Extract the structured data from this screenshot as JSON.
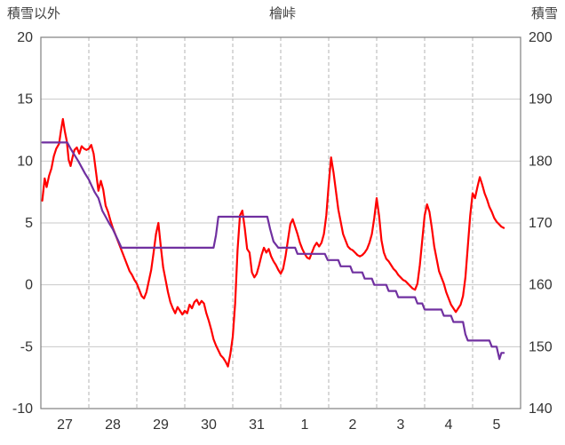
{
  "header": {
    "left_axis_title": "積雪以外",
    "title": "檜峠",
    "right_axis_title": "積雪"
  },
  "chart_data": {
    "type": "line",
    "title": "檜峠",
    "left_axis": {
      "label": "積雪以外",
      "min": -10,
      "max": 20,
      "ticks": [
        20,
        15,
        10,
        5,
        0,
        -5,
        -10
      ]
    },
    "right_axis": {
      "label": "積雪",
      "min": 140,
      "max": 200,
      "ticks": [
        200,
        190,
        180,
        170,
        160,
        150,
        140
      ]
    },
    "x_axis": {
      "labels": [
        "27",
        "28",
        "29",
        "30",
        "31",
        "1",
        "2",
        "3",
        "4",
        "5"
      ],
      "min": 0,
      "max": 10
    },
    "grid": {
      "horizontal": "solid",
      "vertical": "dashed"
    },
    "style": {
      "h_grid": "#c9c9c9",
      "v_grid": "#b3b3b3",
      "border": "#808080",
      "tick_color": "#333333"
    },
    "series": [
      {
        "key": "non-snow",
        "name": "積雪以外",
        "axis": "left",
        "color": "#ff0000",
        "points": [
          [
            0.03,
            6.8
          ],
          [
            0.08,
            8.6
          ],
          [
            0.12,
            7.9
          ],
          [
            0.17,
            8.8
          ],
          [
            0.22,
            9.4
          ],
          [
            0.27,
            10.4
          ],
          [
            0.32,
            11.0
          ],
          [
            0.38,
            11.4
          ],
          [
            0.42,
            12.5
          ],
          [
            0.46,
            13.4
          ],
          [
            0.5,
            12.4
          ],
          [
            0.54,
            11.6
          ],
          [
            0.58,
            10.1
          ],
          [
            0.62,
            9.6
          ],
          [
            0.66,
            10.3
          ],
          [
            0.7,
            10.9
          ],
          [
            0.75,
            11.1
          ],
          [
            0.8,
            10.6
          ],
          [
            0.85,
            11.2
          ],
          [
            0.9,
            11.0
          ],
          [
            0.95,
            10.9
          ],
          [
            1.0,
            11.0
          ],
          [
            1.05,
            11.3
          ],
          [
            1.1,
            10.6
          ],
          [
            1.15,
            9.1
          ],
          [
            1.2,
            7.6
          ],
          [
            1.25,
            8.4
          ],
          [
            1.3,
            7.7
          ],
          [
            1.35,
            6.4
          ],
          [
            1.4,
            5.9
          ],
          [
            1.45,
            5.2
          ],
          [
            1.5,
            4.6
          ],
          [
            1.55,
            4.1
          ],
          [
            1.6,
            3.6
          ],
          [
            1.65,
            3.1
          ],
          [
            1.7,
            2.6
          ],
          [
            1.75,
            2.1
          ],
          [
            1.8,
            1.6
          ],
          [
            1.85,
            1.1
          ],
          [
            1.9,
            0.8
          ],
          [
            1.95,
            0.4
          ],
          [
            2.0,
            0.1
          ],
          [
            2.05,
            -0.4
          ],
          [
            2.1,
            -0.9
          ],
          [
            2.15,
            -1.1
          ],
          [
            2.2,
            -0.6
          ],
          [
            2.25,
            0.3
          ],
          [
            2.3,
            1.2
          ],
          [
            2.35,
            2.6
          ],
          [
            2.4,
            4.1
          ],
          [
            2.45,
            5.0
          ],
          [
            2.5,
            3.1
          ],
          [
            2.55,
            1.4
          ],
          [
            2.6,
            0.4
          ],
          [
            2.65,
            -0.6
          ],
          [
            2.7,
            -1.4
          ],
          [
            2.75,
            -1.9
          ],
          [
            2.8,
            -2.3
          ],
          [
            2.85,
            -1.8
          ],
          [
            2.9,
            -2.1
          ],
          [
            2.95,
            -2.4
          ],
          [
            3.0,
            -2.1
          ],
          [
            3.05,
            -2.3
          ],
          [
            3.1,
            -1.6
          ],
          [
            3.15,
            -1.9
          ],
          [
            3.2,
            -1.4
          ],
          [
            3.25,
            -1.2
          ],
          [
            3.3,
            -1.6
          ],
          [
            3.35,
            -1.3
          ],
          [
            3.4,
            -1.5
          ],
          [
            3.45,
            -2.3
          ],
          [
            3.5,
            -2.9
          ],
          [
            3.55,
            -3.6
          ],
          [
            3.6,
            -4.4
          ],
          [
            3.65,
            -4.9
          ],
          [
            3.7,
            -5.3
          ],
          [
            3.75,
            -5.7
          ],
          [
            3.8,
            -5.9
          ],
          [
            3.85,
            -6.2
          ],
          [
            3.9,
            -6.6
          ],
          [
            3.95,
            -5.6
          ],
          [
            4.0,
            -4.2
          ],
          [
            4.05,
            -1.5
          ],
          [
            4.1,
            2.8
          ],
          [
            4.15,
            5.6
          ],
          [
            4.2,
            6.0
          ],
          [
            4.25,
            4.6
          ],
          [
            4.3,
            2.9
          ],
          [
            4.35,
            2.6
          ],
          [
            4.4,
            1.0
          ],
          [
            4.45,
            0.6
          ],
          [
            4.5,
            0.9
          ],
          [
            4.55,
            1.6
          ],
          [
            4.6,
            2.4
          ],
          [
            4.65,
            3.0
          ],
          [
            4.7,
            2.6
          ],
          [
            4.75,
            2.9
          ],
          [
            4.8,
            2.3
          ],
          [
            4.85,
            1.9
          ],
          [
            4.9,
            1.6
          ],
          [
            4.95,
            1.2
          ],
          [
            5.0,
            0.9
          ],
          [
            5.05,
            1.3
          ],
          [
            5.1,
            2.3
          ],
          [
            5.15,
            3.6
          ],
          [
            5.2,
            4.9
          ],
          [
            5.25,
            5.3
          ],
          [
            5.3,
            4.7
          ],
          [
            5.35,
            4.1
          ],
          [
            5.4,
            3.4
          ],
          [
            5.45,
            2.9
          ],
          [
            5.5,
            2.5
          ],
          [
            5.55,
            2.2
          ],
          [
            5.6,
            2.1
          ],
          [
            5.65,
            2.6
          ],
          [
            5.7,
            3.1
          ],
          [
            5.75,
            3.4
          ],
          [
            5.8,
            3.1
          ],
          [
            5.85,
            3.4
          ],
          [
            5.9,
            4.1
          ],
          [
            5.95,
            5.6
          ],
          [
            6.0,
            8.1
          ],
          [
            6.05,
            10.3
          ],
          [
            6.1,
            9.1
          ],
          [
            6.15,
            7.6
          ],
          [
            6.2,
            6.1
          ],
          [
            6.25,
            5.1
          ],
          [
            6.3,
            4.1
          ],
          [
            6.35,
            3.6
          ],
          [
            6.4,
            3.1
          ],
          [
            6.45,
            2.9
          ],
          [
            6.5,
            2.8
          ],
          [
            6.55,
            2.6
          ],
          [
            6.6,
            2.4
          ],
          [
            6.65,
            2.3
          ],
          [
            6.7,
            2.4
          ],
          [
            6.75,
            2.6
          ],
          [
            6.8,
            2.9
          ],
          [
            6.85,
            3.4
          ],
          [
            6.9,
            4.1
          ],
          [
            6.95,
            5.4
          ],
          [
            7.0,
            7.0
          ],
          [
            7.05,
            5.6
          ],
          [
            7.1,
            3.6
          ],
          [
            7.15,
            2.6
          ],
          [
            7.2,
            2.1
          ],
          [
            7.25,
            1.9
          ],
          [
            7.3,
            1.6
          ],
          [
            7.35,
            1.3
          ],
          [
            7.4,
            1.1
          ],
          [
            7.45,
            0.8
          ],
          [
            7.5,
            0.6
          ],
          [
            7.55,
            0.4
          ],
          [
            7.6,
            0.3
          ],
          [
            7.65,
            0.1
          ],
          [
            7.7,
            -0.1
          ],
          [
            7.75,
            -0.3
          ],
          [
            7.8,
            -0.4
          ],
          [
            7.85,
            0.1
          ],
          [
            7.9,
            1.6
          ],
          [
            7.95,
            3.6
          ],
          [
            8.0,
            5.6
          ],
          [
            8.05,
            6.5
          ],
          [
            8.1,
            5.9
          ],
          [
            8.15,
            4.6
          ],
          [
            8.2,
            3.1
          ],
          [
            8.25,
            2.1
          ],
          [
            8.3,
            1.1
          ],
          [
            8.35,
            0.6
          ],
          [
            8.4,
            0.1
          ],
          [
            8.45,
            -0.6
          ],
          [
            8.5,
            -1.1
          ],
          [
            8.55,
            -1.6
          ],
          [
            8.6,
            -1.9
          ],
          [
            8.65,
            -2.2
          ],
          [
            8.7,
            -1.9
          ],
          [
            8.75,
            -1.6
          ],
          [
            8.8,
            -0.9
          ],
          [
            8.85,
            0.6
          ],
          [
            8.9,
            3.1
          ],
          [
            8.95,
            5.6
          ],
          [
            9.0,
            7.4
          ],
          [
            9.05,
            7.0
          ],
          [
            9.1,
            7.9
          ],
          [
            9.15,
            8.7
          ],
          [
            9.2,
            8.1
          ],
          [
            9.25,
            7.4
          ],
          [
            9.3,
            6.9
          ],
          [
            9.35,
            6.3
          ],
          [
            9.4,
            5.9
          ],
          [
            9.45,
            5.4
          ],
          [
            9.5,
            5.1
          ],
          [
            9.55,
            4.9
          ],
          [
            9.6,
            4.7
          ],
          [
            9.65,
            4.6
          ]
        ]
      },
      {
        "key": "snow-depth",
        "name": "積雪",
        "axis": "right",
        "color": "#7030a0",
        "points": [
          [
            0.03,
            183
          ],
          [
            0.55,
            183
          ],
          [
            0.62,
            182
          ],
          [
            0.7,
            181
          ],
          [
            0.78,
            180
          ],
          [
            0.85,
            179
          ],
          [
            0.92,
            178
          ],
          [
            1.0,
            177
          ],
          [
            1.06,
            176
          ],
          [
            1.12,
            175
          ],
          [
            1.2,
            174
          ],
          [
            1.28,
            172
          ],
          [
            1.35,
            171
          ],
          [
            1.42,
            170
          ],
          [
            1.5,
            169
          ],
          [
            1.56,
            168
          ],
          [
            1.62,
            167
          ],
          [
            1.68,
            166
          ],
          [
            3.6,
            166
          ],
          [
            3.65,
            168
          ],
          [
            3.7,
            171
          ],
          [
            4.72,
            171
          ],
          [
            4.78,
            169
          ],
          [
            4.85,
            167
          ],
          [
            4.95,
            166
          ],
          [
            5.3,
            166
          ],
          [
            5.35,
            165
          ],
          [
            5.92,
            165
          ],
          [
            5.98,
            164
          ],
          [
            6.2,
            164
          ],
          [
            6.25,
            163
          ],
          [
            6.45,
            163
          ],
          [
            6.5,
            162
          ],
          [
            6.7,
            162
          ],
          [
            6.75,
            161
          ],
          [
            6.9,
            161
          ],
          [
            6.95,
            160
          ],
          [
            7.2,
            160
          ],
          [
            7.25,
            159
          ],
          [
            7.4,
            159
          ],
          [
            7.45,
            158
          ],
          [
            7.8,
            158
          ],
          [
            7.85,
            157
          ],
          [
            7.95,
            157
          ],
          [
            8.0,
            156
          ],
          [
            8.35,
            156
          ],
          [
            8.4,
            155
          ],
          [
            8.55,
            155
          ],
          [
            8.6,
            154
          ],
          [
            8.8,
            154
          ],
          [
            8.85,
            152
          ],
          [
            8.9,
            151
          ],
          [
            9.35,
            151
          ],
          [
            9.4,
            150
          ],
          [
            9.5,
            150
          ],
          [
            9.53,
            149
          ],
          [
            9.56,
            148
          ],
          [
            9.6,
            149
          ],
          [
            9.65,
            149
          ]
        ]
      }
    ]
  }
}
